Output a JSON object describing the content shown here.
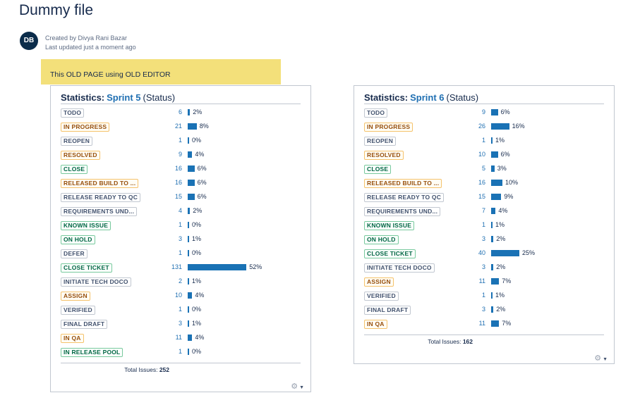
{
  "page": {
    "title": "Dummy file",
    "avatar_initials": "DB",
    "created_by": "Created by Divya Rani Bazar",
    "last_updated": "Last updated just a moment ago",
    "banner_text": "This OLD PAGE using OLD EDITOR"
  },
  "panels": [
    {
      "title_prefix": "Statistics:",
      "sprint": "Sprint 5",
      "title_suffix": "(Status)",
      "total_label": "Total Issues:",
      "total_value": "252",
      "rows": [
        {
          "label": "TODO",
          "count": "6",
          "pct": "2%",
          "percent": 2,
          "style": "default"
        },
        {
          "label": "IN PROGRESS",
          "count": "21",
          "pct": "8%",
          "percent": 8,
          "style": "progress"
        },
        {
          "label": "REOPEN",
          "count": "1",
          "pct": "0%",
          "percent": 0,
          "style": "default"
        },
        {
          "label": "RESOLVED",
          "count": "9",
          "pct": "4%",
          "percent": 4,
          "style": "progress"
        },
        {
          "label": "CLOSE",
          "count": "16",
          "pct": "6%",
          "percent": 6,
          "style": "success"
        },
        {
          "label": "RELEASED BUILD TO ...",
          "count": "16",
          "pct": "6%",
          "percent": 6,
          "style": "progress"
        },
        {
          "label": "RELEASE READY TO QC",
          "count": "15",
          "pct": "6%",
          "percent": 6,
          "style": "default"
        },
        {
          "label": "REQUIREMENTS UND...",
          "count": "4",
          "pct": "2%",
          "percent": 2,
          "style": "default"
        },
        {
          "label": "KNOWN ISSUE",
          "count": "1",
          "pct": "0%",
          "percent": 0,
          "style": "success"
        },
        {
          "label": "ON HOLD",
          "count": "3",
          "pct": "1%",
          "percent": 1,
          "style": "success"
        },
        {
          "label": "DEFER",
          "count": "1",
          "pct": "0%",
          "percent": 0,
          "style": "default"
        },
        {
          "label": "CLOSE TICKET",
          "count": "131",
          "pct": "52%",
          "percent": 52,
          "style": "success"
        },
        {
          "label": "INITIATE TECH DOCO",
          "count": "2",
          "pct": "1%",
          "percent": 1,
          "style": "default"
        },
        {
          "label": "ASSIGN",
          "count": "10",
          "pct": "4%",
          "percent": 4,
          "style": "progress"
        },
        {
          "label": "VERIFIED",
          "count": "1",
          "pct": "0%",
          "percent": 0,
          "style": "default"
        },
        {
          "label": "FINAL DRAFT",
          "count": "3",
          "pct": "1%",
          "percent": 1,
          "style": "default"
        },
        {
          "label": "IN QA",
          "count": "11",
          "pct": "4%",
          "percent": 4,
          "style": "progress"
        },
        {
          "label": "IN RELEASE POOL",
          "count": "1",
          "pct": "0%",
          "percent": 0,
          "style": "success"
        }
      ]
    },
    {
      "title_prefix": "Statistics:",
      "sprint": "Sprint 6",
      "title_suffix": "(Status)",
      "total_label": "Total Issues:",
      "total_value": "162",
      "rows": [
        {
          "label": "TODO",
          "count": "9",
          "pct": "6%",
          "percent": 6,
          "style": "default"
        },
        {
          "label": "IN PROGRESS",
          "count": "26",
          "pct": "16%",
          "percent": 16,
          "style": "progress"
        },
        {
          "label": "REOPEN",
          "count": "1",
          "pct": "1%",
          "percent": 1,
          "style": "default"
        },
        {
          "label": "RESOLVED",
          "count": "10",
          "pct": "6%",
          "percent": 6,
          "style": "progress"
        },
        {
          "label": "CLOSE",
          "count": "5",
          "pct": "3%",
          "percent": 3,
          "style": "success"
        },
        {
          "label": "RELEASED BUILD TO ...",
          "count": "16",
          "pct": "10%",
          "percent": 10,
          "style": "progress"
        },
        {
          "label": "RELEASE READY TO QC",
          "count": "15",
          "pct": "9%",
          "percent": 9,
          "style": "default"
        },
        {
          "label": "REQUIREMENTS UND...",
          "count": "7",
          "pct": "4%",
          "percent": 4,
          "style": "default"
        },
        {
          "label": "KNOWN ISSUE",
          "count": "1",
          "pct": "1%",
          "percent": 1,
          "style": "success"
        },
        {
          "label": "ON HOLD",
          "count": "3",
          "pct": "2%",
          "percent": 2,
          "style": "success"
        },
        {
          "label": "CLOSE TICKET",
          "count": "40",
          "pct": "25%",
          "percent": 25,
          "style": "success"
        },
        {
          "label": "INITIATE TECH DOCO",
          "count": "3",
          "pct": "2%",
          "percent": 2,
          "style": "default"
        },
        {
          "label": "ASSIGN",
          "count": "11",
          "pct": "7%",
          "percent": 7,
          "style": "progress"
        },
        {
          "label": "VERIFIED",
          "count": "1",
          "pct": "1%",
          "percent": 1,
          "style": "default"
        },
        {
          "label": "FINAL DRAFT",
          "count": "3",
          "pct": "2%",
          "percent": 2,
          "style": "default"
        },
        {
          "label": "IN QA",
          "count": "11",
          "pct": "7%",
          "percent": 7,
          "style": "progress"
        }
      ]
    }
  ],
  "icons": {
    "settings": "gear-icon",
    "dropdown": "caret-down-icon"
  }
}
